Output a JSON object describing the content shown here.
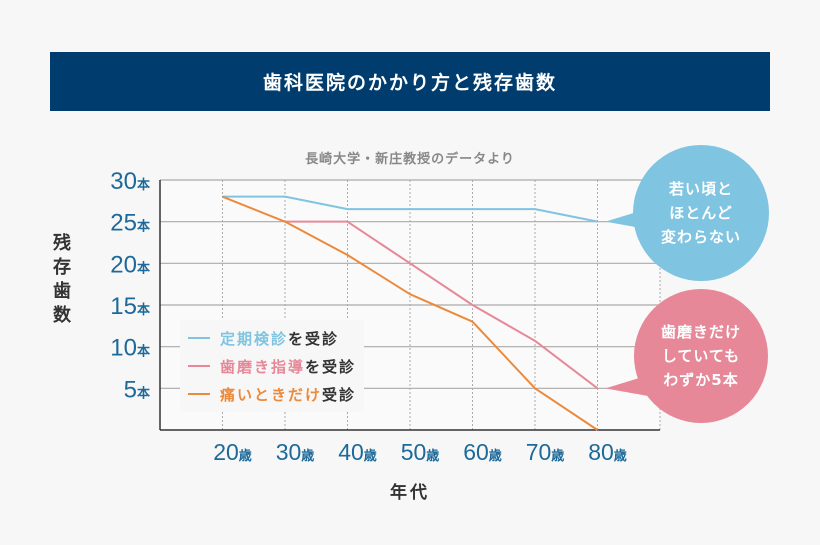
{
  "title": "歯科医院のかかり方と残存歯数",
  "chart_data": {
    "type": "line",
    "subtitle": "長崎大学・新庄教授のデータより",
    "xlabel": "年代",
    "ylabel": "残存歯数",
    "x": [
      20,
      30,
      40,
      50,
      60,
      70,
      80
    ],
    "x_tick_labels": [
      "20歳",
      "30歳",
      "40歳",
      "50歳",
      "60歳",
      "70歳",
      "80歳"
    ],
    "y_ticks": [
      5,
      10,
      15,
      20,
      25,
      30
    ],
    "y_tick_labels": [
      "5本",
      "10本",
      "15本",
      "20本",
      "25本",
      "30本"
    ],
    "xlim": [
      10,
      90
    ],
    "ylim": [
      0,
      30
    ],
    "grid": true,
    "legend_placement": "bottom-left",
    "series": [
      {
        "name": "定期検診を受診",
        "name_colored": "定期検診",
        "name_suffix": "を受診",
        "color": "#7fc4e0",
        "values": [
          28,
          28,
          26.5,
          26.5,
          26.5,
          26.5,
          25
        ]
      },
      {
        "name": "歯磨き指導を受診",
        "name_colored": "歯磨き指導",
        "name_suffix": "を受診",
        "color": "#e68898",
        "values": [
          null,
          25,
          25,
          20,
          15,
          10.7,
          5
        ]
      },
      {
        "name": "痛いときだけ受診",
        "name_colored": "痛いときだけ",
        "name_suffix": "受診",
        "color": "#ec8a3c",
        "values": [
          28,
          25,
          21,
          16.3,
          13,
          5,
          0
        ]
      }
    ],
    "annotations": [
      {
        "text": "若い頃と\nほとんど\n変わらない",
        "color": "#7fc4e0",
        "series": 0,
        "x": 80
      },
      {
        "text": "歯磨きだけ\nしていても\nわずか5本",
        "color": "#e68898",
        "series": 1,
        "x": 80
      }
    ]
  }
}
